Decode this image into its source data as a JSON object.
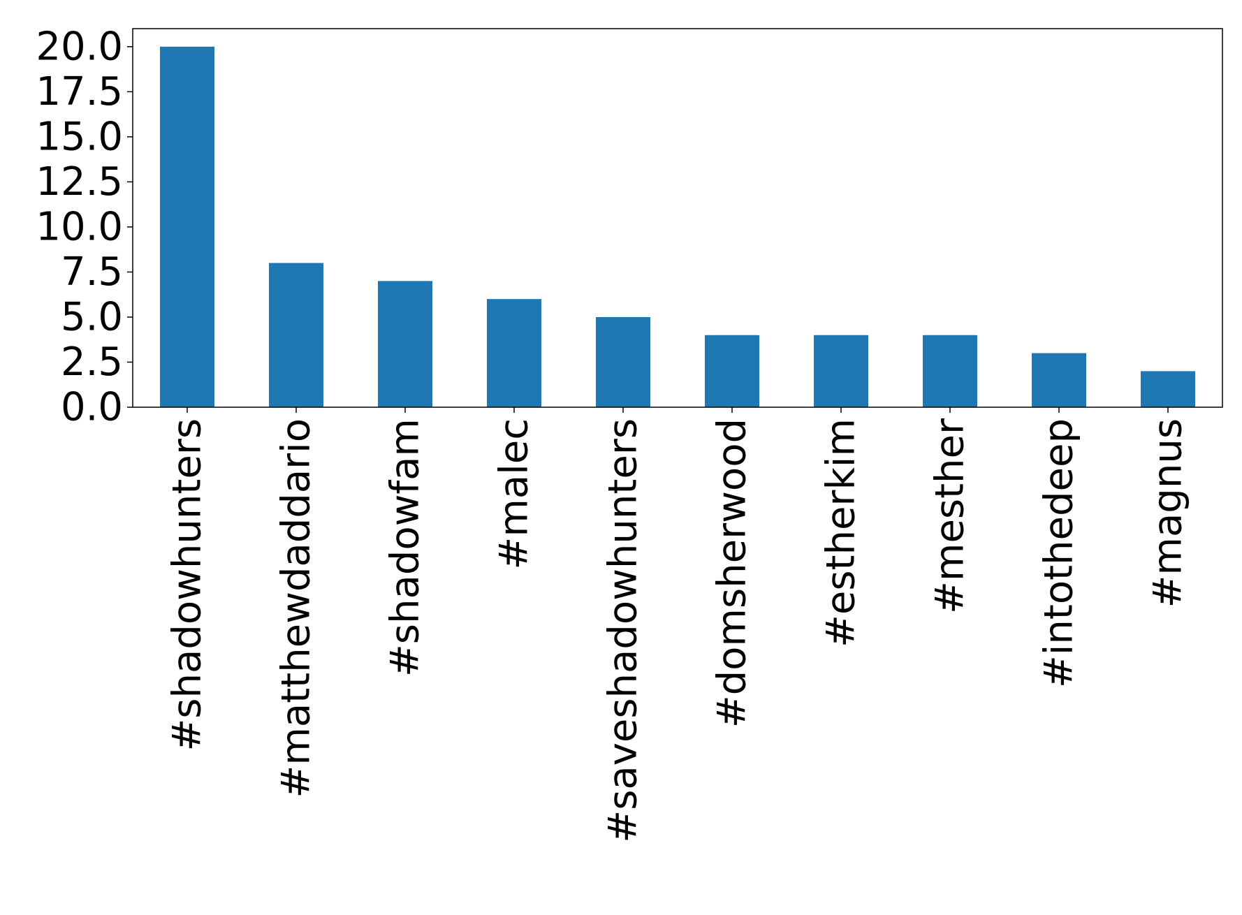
{
  "chart_data": {
    "type": "bar",
    "title": "",
    "xlabel": "",
    "ylabel": "",
    "categories": [
      "#shadowhunters",
      "#matthewdaddario",
      "#shadowfam",
      "#malec",
      "#saveshadowhunters",
      "#domsherwood",
      "#estherkim",
      "#mesther",
      "#intothedeep",
      "#magnus"
    ],
    "values": [
      20,
      8,
      7,
      6,
      5,
      4,
      4,
      4,
      3,
      2
    ],
    "ylim": [
      0,
      21
    ],
    "yticks": [
      "0.0",
      "2.5",
      "5.0",
      "7.5",
      "10.0",
      "12.5",
      "15.0",
      "17.5",
      "20.0"
    ],
    "grid": false,
    "legend": "none",
    "colors": {
      "bar": "#1f77b4",
      "axis": "#000000",
      "background": "#ffffff"
    }
  }
}
